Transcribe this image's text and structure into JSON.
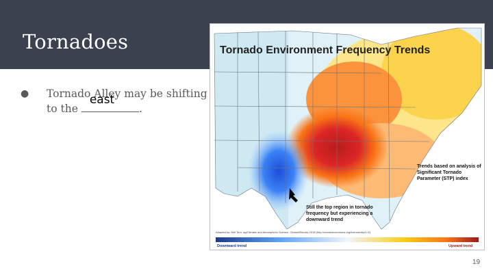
{
  "slide": {
    "title": "Tornadoes",
    "bullet": {
      "text_before": "Tornado Alley may be shifting to the ",
      "answer": "east",
      "text_after": "."
    },
    "page_number": "19"
  },
  "figure": {
    "title": "Tornado Environment Frequency Trends",
    "annotation_method": "Trends based on analysis of Significant Tornado Parameter (STP) index",
    "annotation_region": "Still the top region in tornado frequency but experiencing a downward trend",
    "source": "Adapted by: NW Tern. ag/Climatic and Atmospheric Science, Gensini/Brooks 2018 (http://creativecommons.org/licenses/by/4.0/)",
    "legend": {
      "low": "Downward trend",
      "high": "Upward trend"
    },
    "colors": {
      "downward": "#1e56c8",
      "neutral": "#e9f4f8",
      "upward_low": "#fde047",
      "upward_mid": "#f97316",
      "upward_high": "#c81e1e"
    }
  }
}
